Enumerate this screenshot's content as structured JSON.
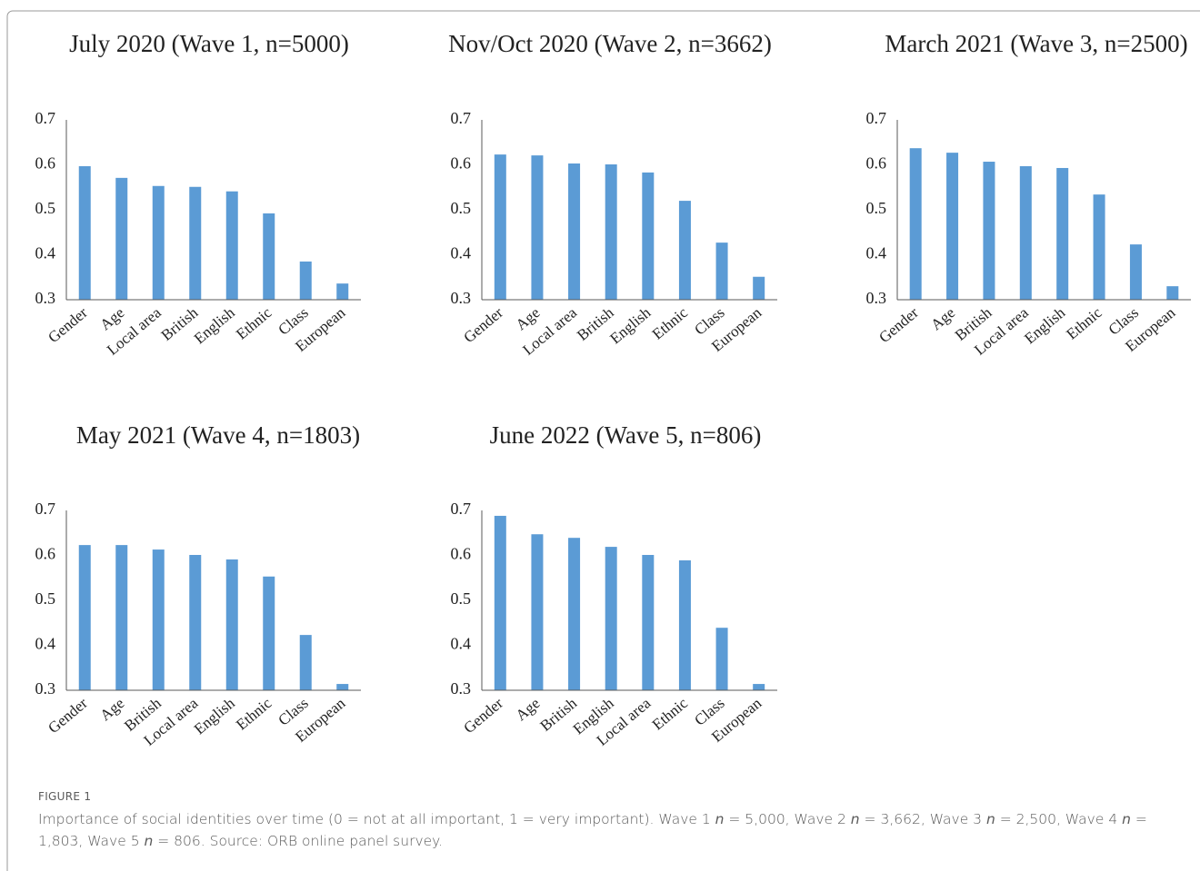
{
  "chart_data": [
    {
      "type": "bar",
      "title": "July 2020 (Wave 1, n=5000)",
      "categories": [
        "Gender",
        "Age",
        "Local area",
        "British",
        "English",
        "Ethnic",
        "Class",
        "European"
      ],
      "values": [
        0.597,
        0.571,
        0.553,
        0.551,
        0.541,
        0.492,
        0.385,
        0.336
      ],
      "color": "#5b9bd5",
      "ylim": [
        0.3,
        0.7
      ],
      "yticks": [
        0.3,
        0.4,
        0.5,
        0.6,
        0.7
      ],
      "grid": false
    },
    {
      "type": "bar",
      "title": "Nov/Oct 2020 (Wave 2, n=3662)",
      "categories": [
        "Gender",
        "Age",
        "Local area",
        "British",
        "English",
        "Ethnic",
        "Class",
        "European"
      ],
      "values": [
        0.623,
        0.621,
        0.603,
        0.601,
        0.583,
        0.52,
        0.427,
        0.351
      ],
      "color": "#5b9bd5",
      "ylim": [
        0.3,
        0.7
      ],
      "yticks": [
        0.3,
        0.4,
        0.5,
        0.6,
        0.7
      ],
      "grid": false
    },
    {
      "type": "bar",
      "title": "March 2021 (Wave 3, n=2500)",
      "categories": [
        "Gender",
        "Age",
        "British",
        "Local area",
        "English",
        "Ethnic",
        "Class",
        "European"
      ],
      "values": [
        0.637,
        0.627,
        0.607,
        0.597,
        0.593,
        0.534,
        0.423,
        0.33
      ],
      "color": "#5b9bd5",
      "ylim": [
        0.3,
        0.7
      ],
      "yticks": [
        0.3,
        0.4,
        0.5,
        0.6,
        0.7
      ],
      "grid": false
    },
    {
      "type": "bar",
      "title": "May 2021 (Wave 4, n=1803)",
      "categories": [
        "Gender",
        "Age",
        "British",
        "Local area",
        "English",
        "Ethnic",
        "Class",
        "European"
      ],
      "values": [
        0.623,
        0.623,
        0.613,
        0.601,
        0.591,
        0.553,
        0.423,
        0.314
      ],
      "color": "#5b9bd5",
      "ylim": [
        0.3,
        0.7
      ],
      "yticks": [
        0.3,
        0.4,
        0.5,
        0.6,
        0.7
      ],
      "grid": false
    },
    {
      "type": "bar",
      "title": "June 2022 (Wave 5, n=806)",
      "categories": [
        "Gender",
        "Age",
        "British",
        "English",
        "Local area",
        "Ethnic",
        "Class",
        "European"
      ],
      "values": [
        0.688,
        0.647,
        0.639,
        0.619,
        0.601,
        0.589,
        0.439,
        0.314
      ],
      "color": "#5b9bd5",
      "ylim": [
        0.3,
        0.7
      ],
      "yticks": [
        0.3,
        0.4,
        0.5,
        0.6,
        0.7
      ],
      "grid": false
    }
  ],
  "caption": {
    "label": "FIGURE 1",
    "parts": [
      {
        "text": "Importance of social identities over time (0 = not at all important, 1 = very important). Wave 1 ",
        "italic": false
      },
      {
        "text": "n",
        "italic": true
      },
      {
        "text": " = 5,000, Wave 2 ",
        "italic": false
      },
      {
        "text": "n",
        "italic": true
      },
      {
        "text": " = 3,662, Wave 3 ",
        "italic": false
      },
      {
        "text": "n",
        "italic": true
      },
      {
        "text": " = 2,500, Wave 4 ",
        "italic": false
      },
      {
        "text": "n",
        "italic": true
      },
      {
        "text": " = 1,803, Wave 5 ",
        "italic": false
      },
      {
        "text": "n",
        "italic": true
      },
      {
        "text": " = 806. Source: ORB online panel survey.",
        "italic": false
      }
    ]
  }
}
